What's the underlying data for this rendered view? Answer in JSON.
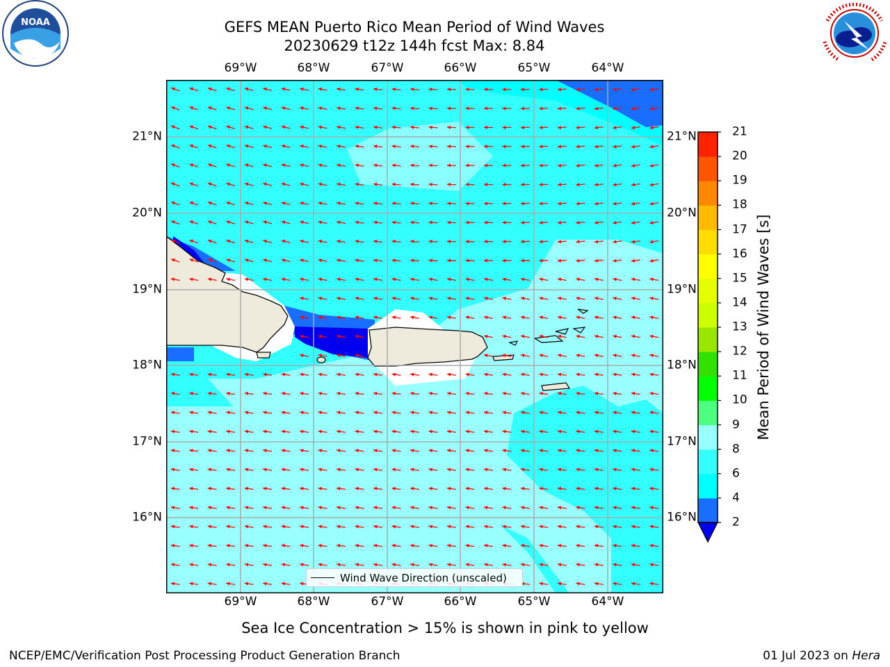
{
  "header": {
    "title_line1": "GEFS MEAN Puerto Rico Mean Period of Wind Waves",
    "title_line2": "20230629 t12z 144h fcst   Max: 8.84"
  },
  "logos": {
    "left": "noaa-logo",
    "right": "national-weather-service-logo"
  },
  "map": {
    "lon_labels": [
      "69°W",
      "68°W",
      "67°W",
      "66°W",
      "65°W",
      "64°W"
    ],
    "lat_labels": [
      "21°N",
      "20°N",
      "19°N",
      "18°N",
      "17°N",
      "16°N"
    ],
    "legend_label": "Wind Wave Direction (unscaled)",
    "arrow_color": "#ff0000",
    "land_color": "#efebdc"
  },
  "colorbar": {
    "label": "Mean Period of Wind Waves [s]",
    "ticks": [
      "2",
      "4",
      "6",
      "8",
      "9",
      "10",
      "11",
      "12",
      "13",
      "14",
      "15",
      "16",
      "17",
      "18",
      "19",
      "20",
      "21"
    ],
    "colors": [
      "#1a6eff",
      "#00ffff",
      "#33ffff",
      "#99ffff",
      "#4dff80",
      "#00ff00",
      "#33e000",
      "#99e600",
      "#ccff00",
      "#e6ff00",
      "#ffff00",
      "#ffdd00",
      "#ffbb00",
      "#ff8800",
      "#ff5500",
      "#ff2200",
      "#ff0000"
    ],
    "under_color": "#0000ee"
  },
  "footer": {
    "note": "Sea Ice Concentration > 15% is shown in pink to yellow",
    "credit_left": "NCEP/EMC/Verification Post Processing Product Generation Branch",
    "date": "01 Jul 2023 on",
    "machine": "Hera"
  }
}
